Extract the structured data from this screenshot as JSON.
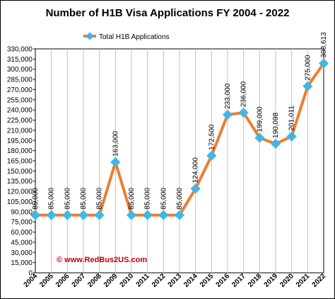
{
  "chart_data": {
    "type": "line",
    "title": "Number of H1B Visa Applications FY 2004 - 2022",
    "x": [
      "2004",
      "2005",
      "2006",
      "2007",
      "2008",
      "2009",
      "2010",
      "2011",
      "2012",
      "2013",
      "2014",
      "2015",
      "2016",
      "2017",
      "2018",
      "2019",
      "2020",
      "2021",
      "2022"
    ],
    "series": [
      {
        "name": "Total H1B Applications",
        "values": [
          85000,
          85000,
          85000,
          85000,
          85000,
          163000,
          85000,
          85000,
          85000,
          85000,
          124000,
          172500,
          233000,
          236000,
          199000,
          190098,
          201011,
          275000,
          308613
        ],
        "labels": [
          "85,000",
          "85,000",
          "85,000",
          "85,000",
          "85,000",
          "163,000",
          "85,000",
          "85,000",
          "85,000",
          "85,000",
          "124,000",
          "172,500",
          "233,000",
          "236,000",
          "199,000",
          "190,098",
          "201,011",
          "275,000",
          "308,613"
        ]
      }
    ],
    "ylim": [
      0,
      330000
    ],
    "ytick_step": 15000,
    "yticks": [
      "0",
      "15,000",
      "30,000",
      "45,000",
      "60,000",
      "75,000",
      "90,000",
      "105,000",
      "120,000",
      "135,000",
      "150,000",
      "165,000",
      "180,000",
      "195,000",
      "210,000",
      "225,000",
      "240,000",
      "255,000",
      "270,000",
      "285,000",
      "300,000",
      "315,000",
      "330,000"
    ],
    "grid": {
      "vertical": true,
      "horizontal": false
    },
    "legend_position": "top-left",
    "line_color": "#ed7d31",
    "marker_color": "#41b6e6",
    "watermark": "© www.RedBus2US.com"
  }
}
